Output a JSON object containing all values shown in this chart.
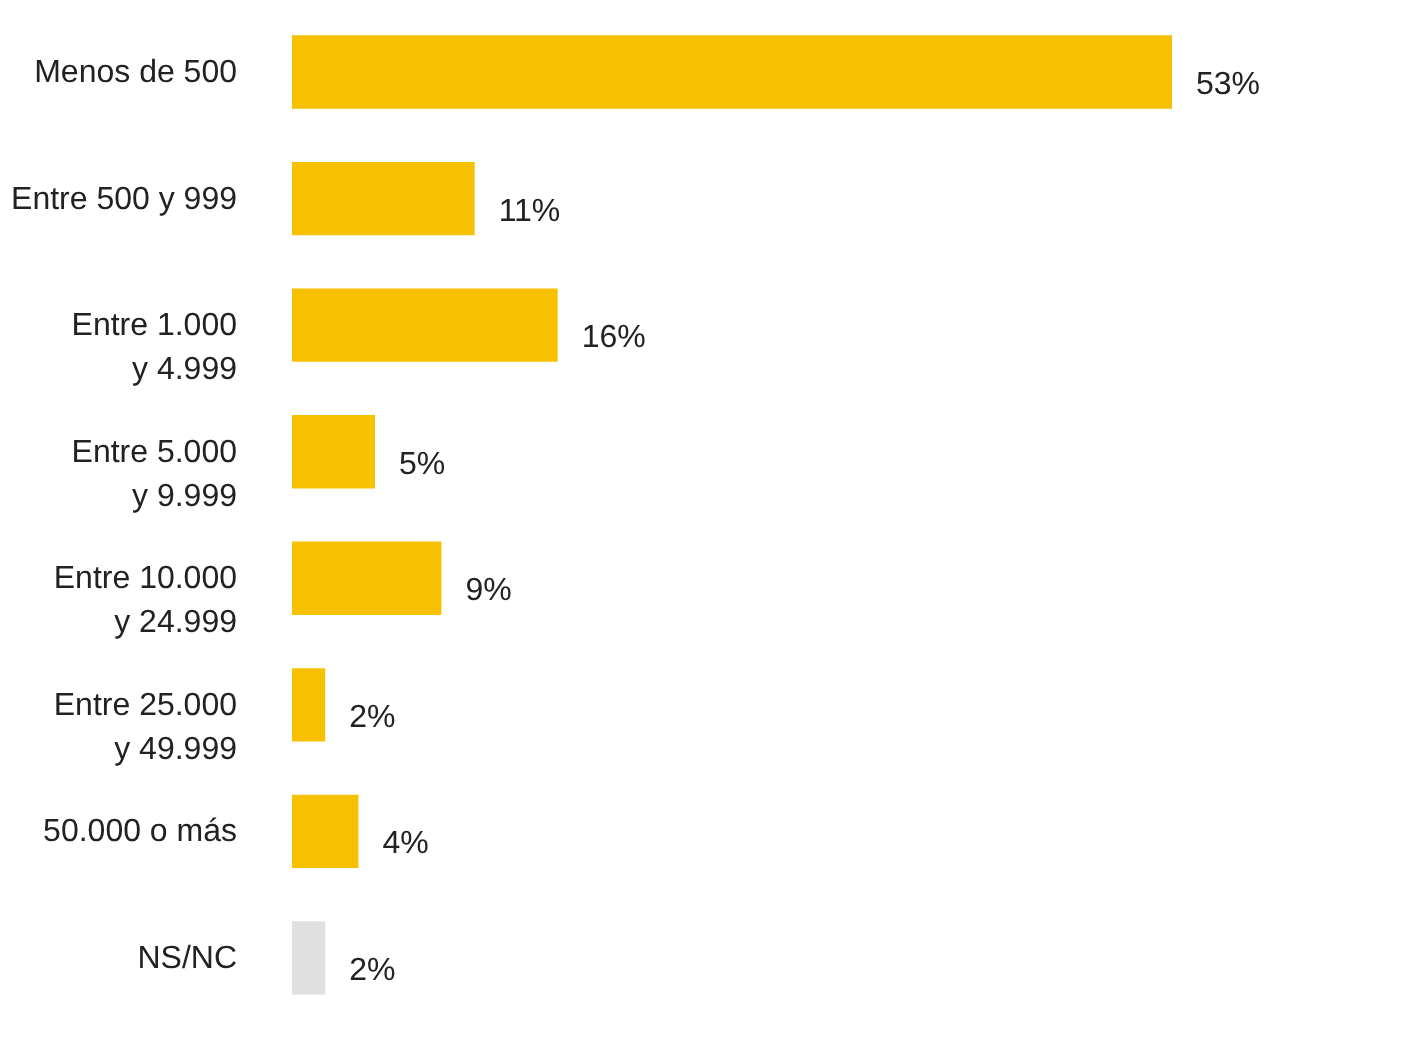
{
  "chart_data": {
    "type": "bar",
    "orientation": "horizontal",
    "categories": [
      "Menos de 500",
      "Entre 500 y 999",
      "Entre 1.000\ny 4.999",
      "Entre 5.000\ny 9.999",
      "Entre 10.000\ny 24.999",
      "Entre 25.000\ny 49.999",
      "50.000 o más",
      "NS/NC"
    ],
    "values": [
      53,
      11,
      16,
      5,
      9,
      2,
      4,
      2
    ],
    "colors": [
      "#f7c000",
      "#f7c000",
      "#f7c000",
      "#f7c000",
      "#f7c000",
      "#f7c000",
      "#f7c000",
      "#e0e0e0"
    ],
    "value_labels": [
      "53%",
      "11%",
      "16%",
      "5%",
      "9%",
      "2%",
      "4%",
      "2%"
    ],
    "tick_labels": "y"
  }
}
